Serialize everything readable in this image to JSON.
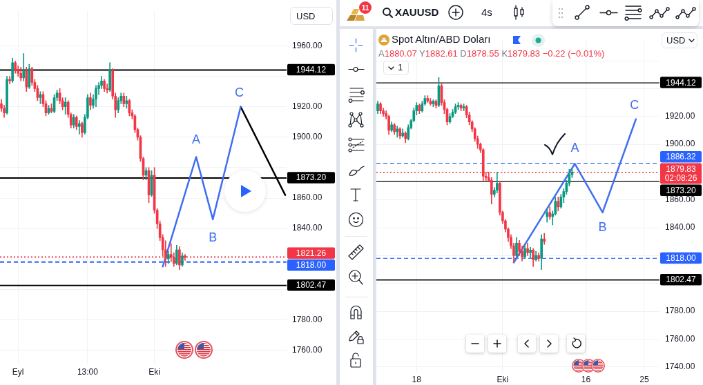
{
  "chart_data": [
    {
      "type": "candlestick",
      "categories": [
        null,
        null,
        null,
        null,
        null,
        null,
        "Eyl",
        null,
        null,
        null,
        null,
        null,
        null,
        null,
        null,
        null,
        null,
        null,
        null,
        null,
        null,
        null,
        null,
        null,
        null,
        null,
        null,
        null,
        null,
        null,
        null,
        "13:00",
        null,
        null,
        null,
        null,
        null,
        null,
        null,
        null,
        null,
        null,
        null,
        null,
        null,
        null,
        null,
        null,
        null,
        null,
        null,
        null,
        null,
        null,
        null,
        "Eki",
        null,
        null,
        null,
        null,
        null,
        null,
        null,
        null,
        null,
        null,
        null,
        null,
        null,
        null,
        null,
        null,
        null,
        null,
        null,
        null,
        null,
        null,
        null,
        null,
        null,
        null,
        null,
        null,
        null,
        null,
        null,
        null,
        null,
        null,
        null,
        null,
        null,
        null,
        null,
        null,
        null,
        null,
        null,
        null,
        null,
        null,
        null
      ],
      "ohlc": [
        [
          1922,
          1925,
          1917,
          1919
        ],
        [
          1919,
          1921,
          1913,
          1916
        ],
        [
          1916,
          1940,
          1915,
          1938
        ],
        [
          1938,
          1940,
          1935,
          1937
        ],
        [
          1937,
          1952,
          1936,
          1949
        ],
        [
          1949,
          1950,
          1942,
          1944
        ],
        [
          1944,
          1947,
          1940,
          1942
        ],
        [
          1942,
          1946,
          1937,
          1939
        ],
        [
          1939,
          1955,
          1937,
          1944
        ],
        [
          1944,
          1946,
          1930,
          1933
        ],
        [
          1933,
          1948,
          1932,
          1945
        ],
        [
          1945,
          1946,
          1934,
          1936
        ],
        [
          1936,
          1938,
          1930,
          1932
        ],
        [
          1932,
          1934,
          1924,
          1926
        ],
        [
          1926,
          1930,
          1922,
          1928
        ],
        [
          1928,
          1930,
          1920,
          1922
        ],
        [
          1922,
          1924,
          1914,
          1916
        ],
        [
          1916,
          1921,
          1915,
          1919
        ],
        [
          1919,
          1922,
          1916,
          1917
        ],
        [
          1917,
          1928,
          1916,
          1926
        ],
        [
          1926,
          1931,
          1924,
          1929
        ],
        [
          1929,
          1932,
          1922,
          1924
        ],
        [
          1924,
          1926,
          1918,
          1920
        ],
        [
          1920,
          1926,
          1915,
          1923
        ],
        [
          1923,
          1924,
          1913,
          1915
        ],
        [
          1915,
          1916,
          1906,
          1908
        ],
        [
          1908,
          1915,
          1906,
          1913
        ],
        [
          1913,
          1914,
          1905,
          1907
        ],
        [
          1907,
          1911,
          1902,
          1909
        ],
        [
          1909,
          1910,
          1900,
          1903
        ],
        [
          1903,
          1915,
          1902,
          1913
        ],
        [
          1913,
          1928,
          1912,
          1926
        ],
        [
          1926,
          1929,
          1918,
          1921
        ],
        [
          1921,
          1928,
          1919,
          1925
        ],
        [
          1925,
          1934,
          1920,
          1932
        ],
        [
          1932,
          1936,
          1928,
          1934
        ],
        [
          1934,
          1940,
          1932,
          1937
        ],
        [
          1937,
          1938,
          1930,
          1932
        ],
        [
          1932,
          1935,
          1929,
          1931
        ],
        [
          1931,
          1949,
          1930,
          1944
        ],
        [
          1944,
          1945,
          1925,
          1927
        ],
        [
          1927,
          1929,
          1913,
          1918
        ],
        [
          1918,
          1926,
          1916,
          1924
        ],
        [
          1924,
          1929,
          1922,
          1927
        ],
        [
          1927,
          1929,
          1920,
          1922
        ],
        [
          1922,
          1927,
          1919,
          1924
        ],
        [
          1924,
          1925,
          1914,
          1916
        ],
        [
          1916,
          1918,
          1912,
          1914
        ],
        [
          1914,
          1915,
          1903,
          1905
        ],
        [
          1905,
          1906,
          1898,
          1900
        ],
        [
          1900,
          1901,
          1884,
          1886
        ],
        [
          1886,
          1887,
          1872,
          1875
        ],
        [
          1875,
          1880,
          1872,
          1878
        ],
        [
          1878,
          1880,
          1857,
          1862
        ],
        [
          1862,
          1878,
          1861,
          1875
        ],
        [
          1875,
          1880,
          1850,
          1852
        ],
        [
          1852,
          1853,
          1840,
          1843
        ],
        [
          1843,
          1845,
          1832,
          1834
        ],
        [
          1834,
          1836,
          1822,
          1826
        ],
        [
          1826,
          1832,
          1815,
          1820
        ],
        [
          1820,
          1825,
          1817,
          1823
        ],
        [
          1823,
          1830,
          1818,
          1821
        ],
        [
          1821,
          1824,
          1815,
          1817
        ],
        [
          1817,
          1829,
          1816,
          1826
        ],
        [
          1826,
          1828,
          1813,
          1816
        ],
        [
          1816,
          1824,
          1815,
          1822
        ],
        [
          1822,
          1823,
          1819,
          1821
        ],
        null,
        null,
        null,
        null,
        null,
        null,
        null,
        null,
        null,
        null,
        null,
        null,
        null,
        null,
        null,
        null,
        null,
        null,
        null,
        null,
        null,
        null,
        null,
        null,
        null,
        null,
        null,
        null,
        null,
        null,
        null,
        null,
        null,
        null,
        null,
        null
      ],
      "series": [
        {
          "type": "line",
          "color": "#3f6ef0",
          "values": [
            null,
            null,
            null,
            null,
            null,
            null,
            null,
            null,
            null,
            null,
            null,
            null,
            null,
            null,
            null,
            null,
            null,
            null,
            null,
            null,
            null,
            null,
            null,
            null,
            null,
            null,
            null,
            null,
            null,
            null,
            null,
            null,
            null,
            null,
            null,
            null,
            null,
            null,
            null,
            null,
            null,
            null,
            null,
            null,
            null,
            null,
            null,
            null,
            null,
            null,
            null,
            null,
            null,
            null,
            null,
            null,
            null,
            null,
            1815,
            null,
            null,
            null,
            null,
            null,
            null,
            null,
            null,
            null,
            null,
            null,
            1887,
            null,
            null,
            null,
            null,
            null,
            1846,
            null,
            null,
            null,
            null,
            null,
            null,
            null,
            null,
            null,
            1920,
            null,
            null,
            null,
            null,
            null,
            null,
            null,
            null,
            null,
            null,
            null,
            null,
            null,
            null,
            null,
            null
          ]
        },
        {
          "type": "line",
          "color": "#000000",
          "values": [
            null,
            null,
            null,
            null,
            null,
            null,
            null,
            null,
            null,
            null,
            null,
            null,
            null,
            null,
            null,
            null,
            null,
            null,
            null,
            null,
            null,
            null,
            null,
            null,
            null,
            null,
            null,
            null,
            null,
            null,
            null,
            null,
            null,
            null,
            null,
            null,
            null,
            null,
            null,
            null,
            null,
            null,
            null,
            null,
            null,
            null,
            null,
            null,
            null,
            null,
            null,
            null,
            null,
            null,
            null,
            null,
            null,
            null,
            null,
            null,
            null,
            null,
            null,
            null,
            null,
            null,
            null,
            null,
            null,
            null,
            null,
            null,
            null,
            null,
            null,
            null,
            null,
            null,
            null,
            null,
            null,
            null,
            null,
            null,
            null,
            null,
            1920,
            null,
            null,
            null,
            null,
            null,
            null,
            null,
            null,
            null,
            null,
            null,
            null,
            null,
            null,
            null,
            1862
          ]
        }
      ],
      "ylim": [
        1750.7,
        1983.3
      ],
      "yticks": [
        {
          "value": 1760,
          "label": "1760.00"
        },
        {
          "value": 1780,
          "label": "1780.00"
        },
        {
          "value": 1800,
          "label": null
        },
        {
          "value": 1820,
          "label": null
        },
        {
          "value": 1840,
          "label": "1840.00"
        },
        {
          "value": 1860,
          "label": "1860.00"
        },
        {
          "value": 1880,
          "label": null
        },
        {
          "value": 1900,
          "label": "1900.00"
        },
        {
          "value": 1920,
          "label": "1920.00"
        },
        {
          "value": 1940,
          "label": null
        },
        {
          "value": 1960,
          "label": "1960.00"
        }
      ],
      "grid": true,
      "ref_lines": [
        {
          "axis": "y",
          "value": 1944.12,
          "label": "1944.12",
          "color": "#000000"
        },
        {
          "axis": "y",
          "value": 1873.2,
          "label": "1873.20",
          "color": "#000000"
        },
        {
          "axis": "y",
          "value": 1821.26,
          "label": "1821.26",
          "color": "#f23645",
          "line_style": "dotted"
        },
        {
          "axis": "y",
          "value": 1818,
          "label": "1818.00",
          "color": "#2962ff",
          "line_style": "dashed"
        },
        {
          "axis": "y",
          "value": 1802.47,
          "label": "1802.47",
          "color": "#000000"
        }
      ],
      "annotations": [
        "A",
        "B",
        "C",
        "USD"
      ]
    },
    {
      "type": "candlestick",
      "title": "Spot Altın/ABD Doları",
      "subtitle": "A1880.07 Y1882.61 D1878.55 K1879.83 −0.22 (−0.01%)",
      "categories": [
        null,
        null,
        null,
        null,
        null,
        null,
        null,
        null,
        null,
        null,
        null,
        null,
        null,
        null,
        "18",
        null,
        null,
        null,
        null,
        null,
        null,
        null,
        null,
        null,
        null,
        null,
        null,
        null,
        null,
        null,
        null,
        null,
        null,
        null,
        null,
        null,
        null,
        null,
        null,
        null,
        null,
        null,
        null,
        null,
        null,
        "Eki",
        null,
        null,
        null,
        null,
        null,
        null,
        null,
        null,
        null,
        null,
        null,
        null,
        null,
        null,
        null,
        null,
        null,
        null,
        null,
        null,
        null,
        null,
        null,
        null,
        null,
        null,
        null,
        null,
        null,
        "16",
        null,
        null,
        null,
        null,
        null,
        null,
        null,
        null,
        null,
        null,
        null,
        null,
        null,
        null,
        null,
        null,
        null,
        null,
        null,
        null,
        "25",
        null,
        null,
        null,
        null,
        null
      ],
      "ohlc": [
        [
          1924,
          1931,
          1922,
          1929
        ],
        [
          1929,
          1930,
          1922,
          1924
        ],
        [
          1924,
          1926,
          1920,
          1922
        ],
        [
          1922,
          1924,
          1918,
          1920
        ],
        [
          1920,
          1921,
          1907,
          1910
        ],
        [
          1910,
          1916,
          1909,
          1914
        ],
        [
          1914,
          1915,
          1907,
          1909
        ],
        [
          1909,
          1913,
          1905,
          1911
        ],
        [
          1911,
          1912,
          1904,
          1906
        ],
        [
          1906,
          1911,
          1905,
          1908
        ],
        [
          1908,
          1909,
          1901,
          1904
        ],
        [
          1904,
          1914,
          1903,
          1912
        ],
        [
          1912,
          1918,
          1911,
          1917
        ],
        [
          1917,
          1926,
          1916,
          1924
        ],
        [
          1924,
          1930,
          1921,
          1928
        ],
        [
          1928,
          1929,
          1922,
          1924
        ],
        [
          1924,
          1931,
          1923,
          1929
        ],
        [
          1929,
          1935,
          1928,
          1933
        ],
        [
          1933,
          1935,
          1930,
          1931
        ],
        [
          1931,
          1933,
          1928,
          1929
        ],
        [
          1929,
          1932,
          1927,
          1931
        ],
        [
          1931,
          1932,
          1926,
          1928
        ],
        [
          1928,
          1948,
          1927,
          1942
        ],
        [
          1942,
          1944,
          1928,
          1930
        ],
        [
          1930,
          1932,
          1922,
          1925
        ],
        [
          1925,
          1926,
          1914,
          1916
        ],
        [
          1916,
          1922,
          1915,
          1920
        ],
        [
          1920,
          1925,
          1919,
          1923
        ],
        [
          1923,
          1929,
          1922,
          1927
        ],
        [
          1927,
          1930,
          1925,
          1928
        ],
        [
          1928,
          1929,
          1924,
          1926
        ],
        [
          1926,
          1929,
          1924,
          1927
        ],
        [
          1927,
          1928,
          1919,
          1921
        ],
        [
          1921,
          1923,
          1914,
          1916
        ],
        [
          1916,
          1917,
          1909,
          1911
        ],
        [
          1911,
          1912,
          1902,
          1904
        ],
        [
          1904,
          1906,
          1897,
          1900
        ],
        [
          1900,
          1901,
          1894,
          1896
        ],
        [
          1896,
          1897,
          1874,
          1877
        ],
        [
          1877,
          1880,
          1873,
          1876
        ],
        [
          1876,
          1880,
          1873,
          1874
        ],
        [
          1874,
          1876,
          1857,
          1864
        ],
        [
          1864,
          1869,
          1862,
          1867
        ],
        [
          1867,
          1880,
          1865,
          1872
        ],
        [
          1872,
          1873,
          1849,
          1851
        ],
        [
          1851,
          1852,
          1843,
          1845
        ],
        [
          1845,
          1846,
          1837,
          1839
        ],
        [
          1839,
          1840,
          1830,
          1833
        ],
        [
          1833,
          1835,
          1825,
          1827
        ],
        [
          1827,
          1829,
          1815,
          1820
        ],
        [
          1820,
          1833,
          1819,
          1829
        ],
        [
          1829,
          1831,
          1820,
          1823
        ],
        [
          1823,
          1827,
          1816,
          1819
        ],
        [
          1819,
          1828,
          1818,
          1825
        ],
        [
          1825,
          1829,
          1820,
          1822
        ],
        [
          1822,
          1826,
          1818,
          1824
        ],
        [
          1824,
          1825,
          1812,
          1817
        ],
        [
          1817,
          1823,
          1816,
          1820
        ],
        [
          1820,
          1822,
          1816,
          1818
        ],
        [
          1818,
          1835,
          1810,
          1832
        ],
        [
          1832,
          1836,
          1828,
          1830
        ],
        [
          1848,
          1853,
          1844,
          1851
        ],
        [
          1851,
          1855,
          1846,
          1848
        ],
        [
          1848,
          1852,
          1842,
          1850
        ],
        [
          1850,
          1862,
          1849,
          1859
        ],
        [
          1859,
          1862,
          1852,
          1855
        ],
        [
          1855,
          1864,
          1854,
          1862
        ],
        [
          1862,
          1868,
          1858,
          1866
        ],
        [
          1866,
          1874,
          1864,
          1872
        ],
        [
          1872,
          1882,
          1870,
          1878
        ],
        [
          1878,
          1883,
          1876,
          1880
        ],
        null,
        null,
        null,
        null,
        null,
        null,
        null,
        null,
        null,
        null,
        null,
        null,
        null,
        null,
        null,
        null,
        null,
        null,
        null,
        null,
        null,
        null,
        null,
        null,
        null,
        null,
        null,
        null,
        null,
        null,
        null
      ],
      "series": [
        {
          "type": "line",
          "color": "#3f6ef0",
          "values": [
            null,
            null,
            null,
            null,
            null,
            null,
            null,
            null,
            null,
            null,
            null,
            null,
            null,
            null,
            null,
            null,
            null,
            null,
            null,
            null,
            null,
            null,
            null,
            null,
            null,
            null,
            null,
            null,
            null,
            null,
            null,
            null,
            null,
            null,
            null,
            null,
            null,
            null,
            null,
            null,
            null,
            null,
            null,
            null,
            null,
            null,
            null,
            null,
            null,
            1815,
            null,
            null,
            null,
            null,
            null,
            null,
            null,
            null,
            null,
            null,
            null,
            null,
            null,
            null,
            null,
            null,
            null,
            null,
            null,
            null,
            null,
            1886,
            null,
            null,
            null,
            null,
            null,
            null,
            null,
            null,
            null,
            1851,
            null,
            null,
            null,
            null,
            null,
            null,
            null,
            null,
            null,
            null,
            null,
            1918,
            null,
            null,
            null,
            null,
            null,
            null,
            null,
            null
          ]
        }
      ],
      "ylim": [
        1735.9,
        1975.3
      ],
      "yticks": [
        {
          "value": 1740,
          "label": "1740.00"
        },
        {
          "value": 1760,
          "label": "1760.00"
        },
        {
          "value": 1780,
          "label": "1780.00"
        },
        {
          "value": 1800,
          "label": null
        },
        {
          "value": 1820,
          "label": null
        },
        {
          "value": 1840,
          "label": "1840.00"
        },
        {
          "value": 1860,
          "label": "1860.00"
        },
        {
          "value": 1880,
          "label": null
        },
        {
          "value": 1900,
          "label": "1900.00"
        },
        {
          "value": 1920,
          "label": "1920.00"
        },
        {
          "value": 1940,
          "label": null
        },
        {
          "value": 1960,
          "label": null
        }
      ],
      "grid": true,
      "ref_lines": [
        {
          "axis": "y",
          "value": 1944.12,
          "label": "1944.12",
          "color": "#000000"
        },
        {
          "axis": "y",
          "value": 1886.32,
          "label": "1886.32",
          "color": "#2962ff",
          "line_style": "dashed"
        },
        {
          "axis": "y",
          "value": 1879.83,
          "label": "1879.83\n02:08:26",
          "color": "#f23645",
          "line_style": "dotted"
        },
        {
          "axis": "y",
          "value": 1873.2,
          "label": "1873.20",
          "color": "#000000"
        },
        {
          "axis": "y",
          "value": 1818,
          "label": "1818.00",
          "color": "#2962ff",
          "line_style": "dashed"
        },
        {
          "axis": "y",
          "value": 1802.47,
          "label": "1802.47",
          "color": "#000000"
        }
      ],
      "annotations": [
        "A",
        "B",
        "C",
        "USD",
        "1",
        "XAUUSD",
        "4s",
        "11"
      ]
    }
  ]
}
